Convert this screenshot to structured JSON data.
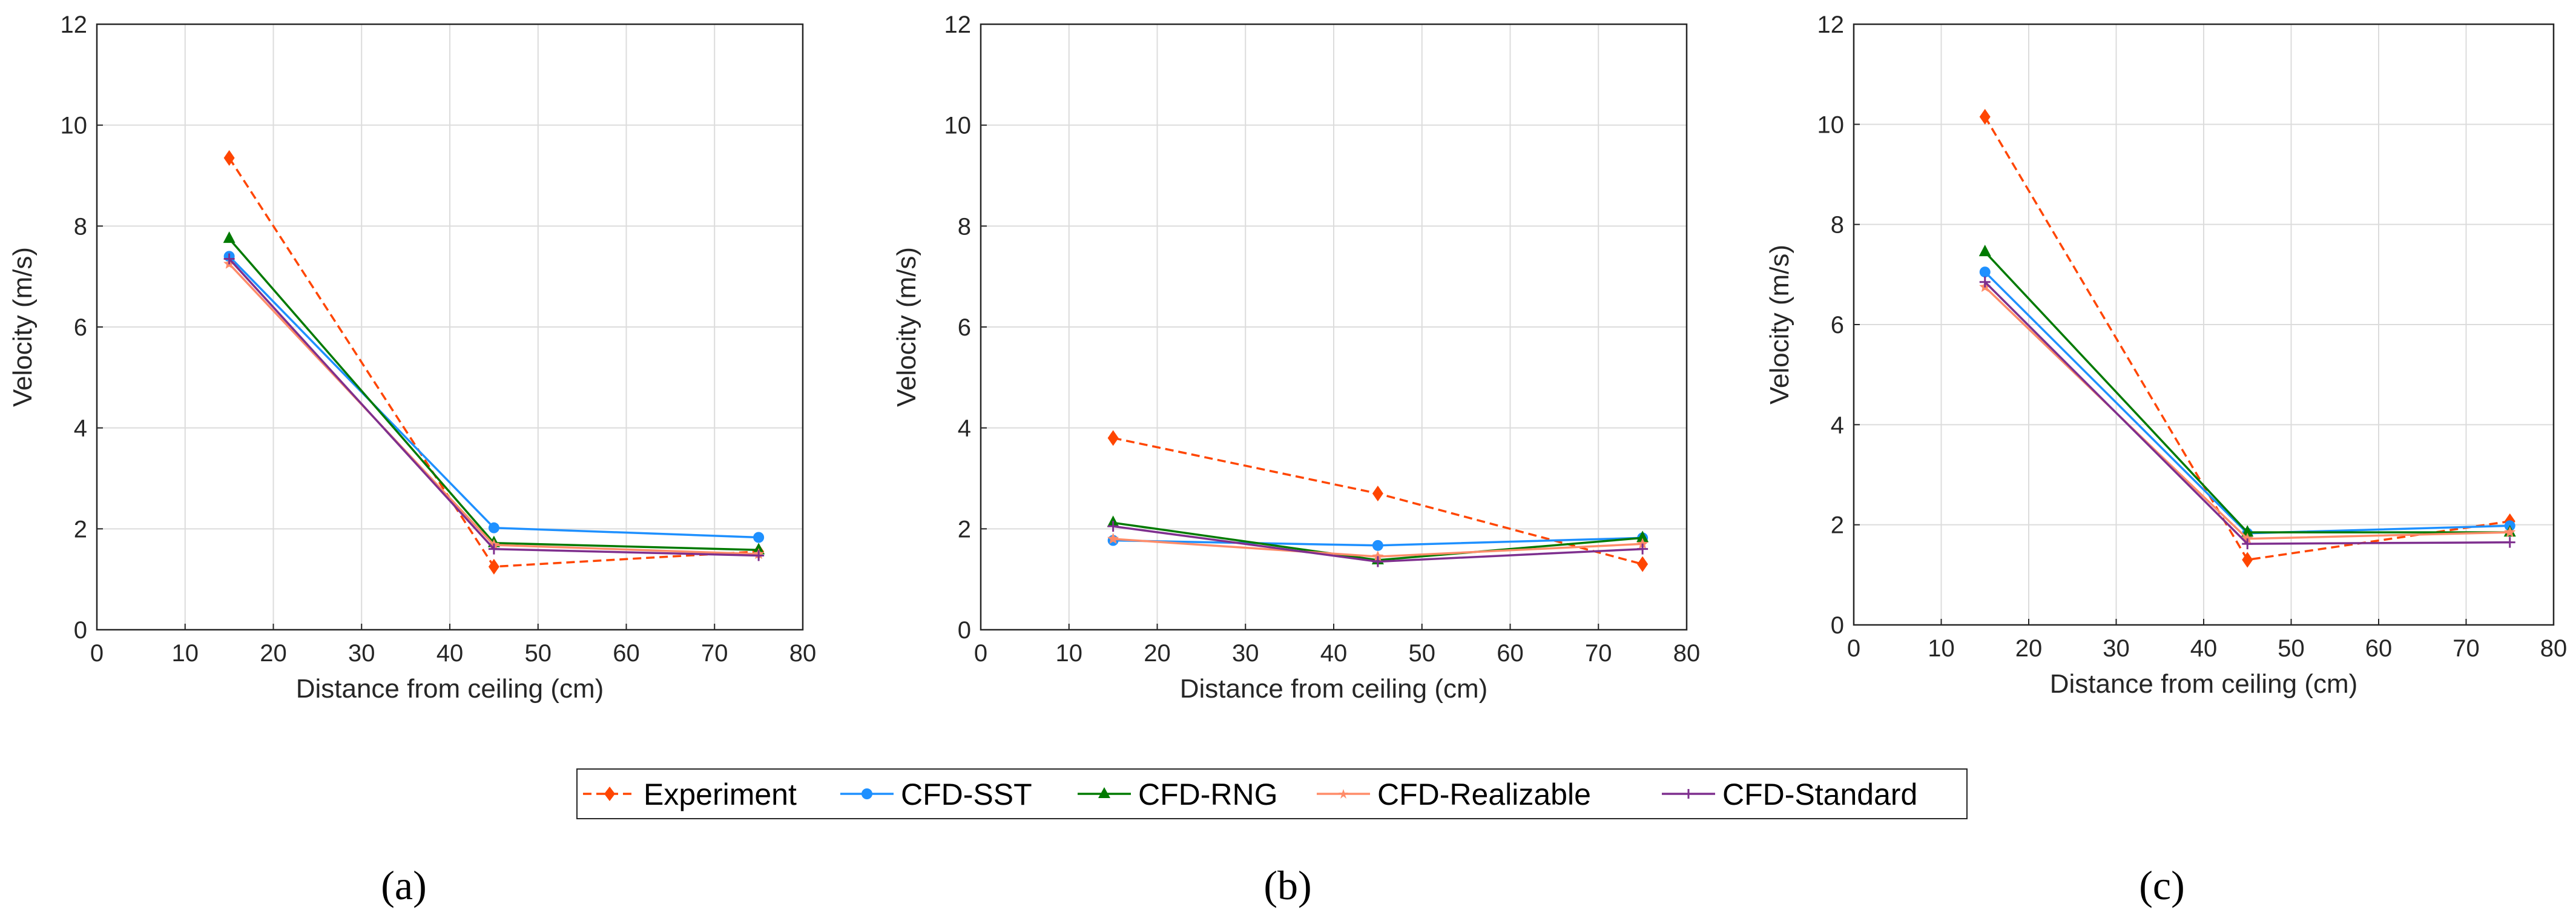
{
  "colors": {
    "Experiment": "#ff4500",
    "CFD-SST": "#1e90ff",
    "CFD-RNG": "#007a00",
    "CFD-Realizable": "#ff8c69",
    "CFD-Standard": "#7e2f8e"
  },
  "legend": {
    "entries": [
      "Experiment",
      "CFD-SST",
      "CFD-RNG",
      "CFD-Realizable",
      "CFD-Standard"
    ]
  },
  "chart_data": [
    {
      "type": "line",
      "panel_label": "(a)",
      "xlabel": "Distance from ceiling (cm)",
      "ylabel": "Velocity (m/s)",
      "xlim": [
        0,
        80
      ],
      "ylim": [
        0,
        12
      ],
      "xticks": [
        "0",
        "10",
        "20",
        "30",
        "40",
        "50",
        "60",
        "70",
        "80"
      ],
      "yticks": [
        "0",
        "2",
        "4",
        "6",
        "8",
        "10",
        "12"
      ],
      "grid": true,
      "x": [
        15,
        45,
        75
      ],
      "series": [
        {
          "name": "Experiment",
          "values": [
            9.35,
            1.25,
            1.55
          ]
        },
        {
          "name": "CFD-SST",
          "values": [
            7.4,
            2.02,
            1.83
          ]
        },
        {
          "name": "CFD-RNG",
          "values": [
            7.75,
            1.72,
            1.58
          ]
        },
        {
          "name": "CFD-Realizable",
          "values": [
            7.25,
            1.68,
            1.5
          ]
        },
        {
          "name": "CFD-Standard",
          "values": [
            7.35,
            1.6,
            1.47
          ]
        }
      ]
    },
    {
      "type": "line",
      "panel_label": "(b)",
      "xlabel": "Distance from ceiling (cm)",
      "ylabel": "Velocity (m/s)",
      "xlim": [
        0,
        80
      ],
      "ylim": [
        0,
        12
      ],
      "xticks": [
        "0",
        "10",
        "20",
        "30",
        "40",
        "50",
        "60",
        "70",
        "80"
      ],
      "yticks": [
        "0",
        "2",
        "4",
        "6",
        "8",
        "10",
        "12"
      ],
      "grid": true,
      "x": [
        15,
        45,
        75
      ],
      "series": [
        {
          "name": "Experiment",
          "values": [
            3.8,
            2.7,
            1.3
          ]
        },
        {
          "name": "CFD-SST",
          "values": [
            1.77,
            1.67,
            1.82
          ]
        },
        {
          "name": "CFD-RNG",
          "values": [
            2.12,
            1.38,
            1.82
          ]
        },
        {
          "name": "CFD-Realizable",
          "values": [
            1.8,
            1.45,
            1.7
          ]
        },
        {
          "name": "CFD-Standard",
          "values": [
            2.05,
            1.35,
            1.6
          ]
        }
      ]
    },
    {
      "type": "line",
      "panel_label": "(c)",
      "xlabel": "Distance from ceiling (cm)",
      "ylabel": "Velocity (m/s)",
      "xlim": [
        0,
        80
      ],
      "ylim": [
        0,
        12
      ],
      "xticks": [
        "0",
        "10",
        "20",
        "30",
        "40",
        "50",
        "60",
        "70",
        "80"
      ],
      "yticks": [
        "0",
        "2",
        "4",
        "6",
        "8",
        "10",
        "12"
      ],
      "grid": true,
      "x": [
        15,
        45,
        75
      ],
      "series": [
        {
          "name": "Experiment",
          "values": [
            10.15,
            1.3,
            2.07
          ]
        },
        {
          "name": "CFD-SST",
          "values": [
            7.05,
            1.83,
            1.98
          ]
        },
        {
          "name": "CFD-RNG",
          "values": [
            7.45,
            1.85,
            1.85
          ]
        },
        {
          "name": "CFD-Realizable",
          "values": [
            6.75,
            1.72,
            1.85
          ]
        },
        {
          "name": "CFD-Standard",
          "values": [
            6.85,
            1.62,
            1.65
          ]
        }
      ]
    }
  ]
}
